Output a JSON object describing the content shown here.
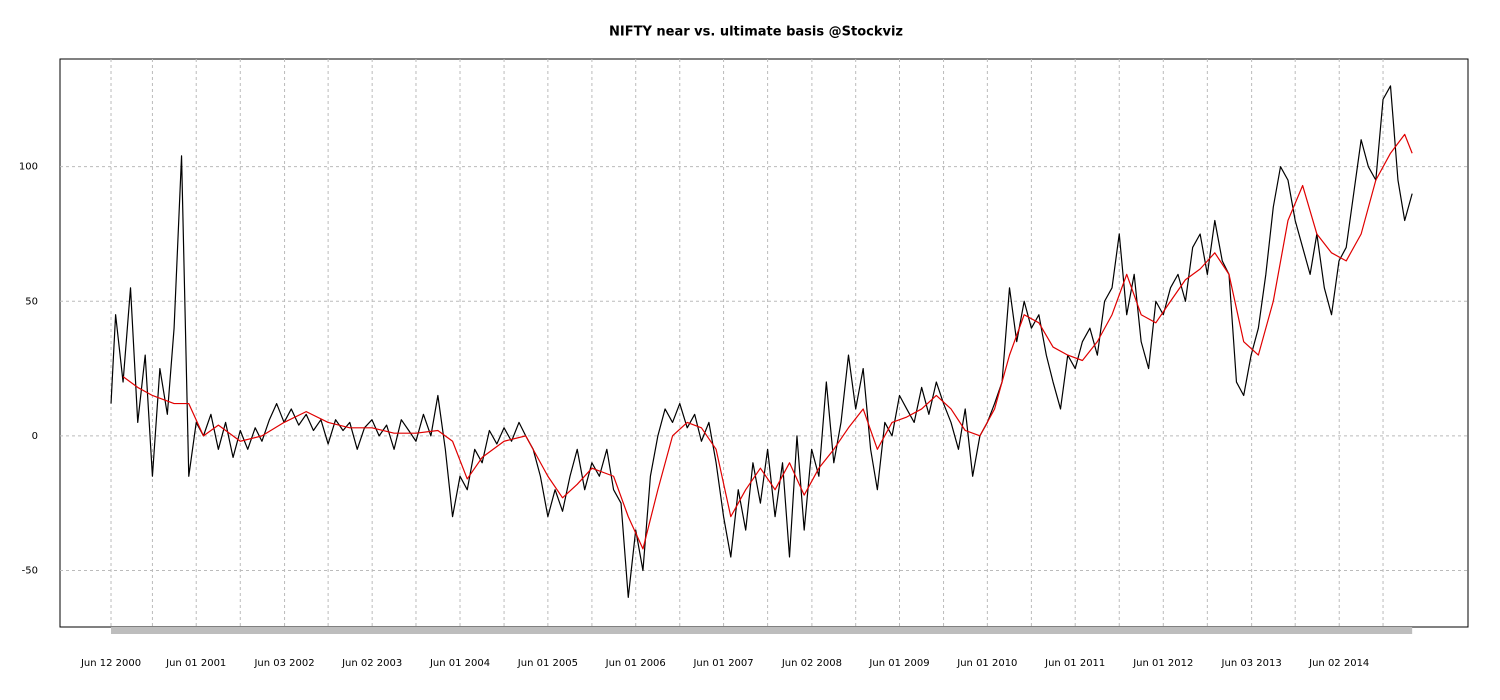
{
  "chart_data": {
    "type": "line",
    "title": "NIFTY near vs. ultimate basis @Stockviz",
    "xlim": [
      "1999-11-13",
      "2015-11-19"
    ],
    "ylim": [
      -71,
      140
    ],
    "yticks": [
      -50,
      0,
      50,
      100
    ],
    "xticks": [
      {
        "value": "2000-06-12",
        "label": "Jun 12 2000"
      },
      {
        "value": "2001-06-01",
        "label": "Jun 01 2001"
      },
      {
        "value": "2002-06-03",
        "label": "Jun 03 2002"
      },
      {
        "value": "2003-06-02",
        "label": "Jun 02 2003"
      },
      {
        "value": "2004-06-01",
        "label": "Jun 01 2004"
      },
      {
        "value": "2005-06-01",
        "label": "Jun 01 2005"
      },
      {
        "value": "2006-06-01",
        "label": "Jun 01 2006"
      },
      {
        "value": "2007-06-01",
        "label": "Jun 01 2007"
      },
      {
        "value": "2008-06-02",
        "label": "Jun 02 2008"
      },
      {
        "value": "2009-06-01",
        "label": "Jun 01 2009"
      },
      {
        "value": "2010-06-01",
        "label": "Jun 01 2010"
      },
      {
        "value": "2011-06-01",
        "label": "Jun 01 2011"
      },
      {
        "value": "2012-06-01",
        "label": "Jun 01 2012"
      },
      {
        "value": "2013-06-03",
        "label": "Jun 03 2013"
      },
      {
        "value": "2014-06-02",
        "label": "Jun 02 2014"
      }
    ],
    "minor_xticks": [
      "2000-12-01",
      "2001-12-01",
      "2002-12-01",
      "2003-12-01",
      "2004-12-01",
      "2005-12-01",
      "2006-12-01",
      "2007-12-01",
      "2008-12-01",
      "2009-12-01",
      "2010-12-01",
      "2011-12-01",
      "2012-12-01",
      "2013-12-01",
      "2014-12-01"
    ],
    "grid": true,
    "series": [
      {
        "color": "#000000",
        "x": [
          "2000-06-12",
          "2000-07-01",
          "2000-08-01",
          "2000-09-01",
          "2000-10-01",
          "2000-11-01",
          "2000-12-01",
          "2001-01-01",
          "2001-02-01",
          "2001-03-01",
          "2001-04-01",
          "2001-05-01",
          "2001-06-01",
          "2001-07-01",
          "2001-08-01",
          "2001-09-01",
          "2001-10-01",
          "2001-11-01",
          "2001-12-01",
          "2002-01-01",
          "2002-02-01",
          "2002-03-01",
          "2002-04-01",
          "2002-05-01",
          "2002-06-01",
          "2002-07-01",
          "2002-08-01",
          "2002-09-01",
          "2002-10-01",
          "2002-11-01",
          "2002-12-01",
          "2003-01-01",
          "2003-02-01",
          "2003-03-01",
          "2003-04-01",
          "2003-05-01",
          "2003-06-01",
          "2003-07-01",
          "2003-08-01",
          "2003-09-01",
          "2003-10-01",
          "2003-11-01",
          "2003-12-01",
          "2004-01-01",
          "2004-02-01",
          "2004-03-01",
          "2004-04-01",
          "2004-05-01",
          "2004-06-01",
          "2004-07-01",
          "2004-08-01",
          "2004-09-01",
          "2004-10-01",
          "2004-11-01",
          "2004-12-01",
          "2005-01-01",
          "2005-02-01",
          "2005-03-01",
          "2005-04-01",
          "2005-05-01",
          "2005-06-01",
          "2005-07-01",
          "2005-08-01",
          "2005-09-01",
          "2005-10-01",
          "2005-11-01",
          "2005-12-01",
          "2006-01-01",
          "2006-02-01",
          "2006-03-01",
          "2006-04-01",
          "2006-05-01",
          "2006-06-01",
          "2006-07-01",
          "2006-08-01",
          "2006-09-01",
          "2006-10-01",
          "2006-11-01",
          "2006-12-01",
          "2007-01-01",
          "2007-02-01",
          "2007-03-01",
          "2007-04-01",
          "2007-05-01",
          "2007-06-01",
          "2007-07-01",
          "2007-08-01",
          "2007-09-01",
          "2007-10-01",
          "2007-11-01",
          "2007-12-01",
          "2008-01-01",
          "2008-02-01",
          "2008-03-01",
          "2008-04-01",
          "2008-05-01",
          "2008-06-01",
          "2008-07-01",
          "2008-08-01",
          "2008-09-01",
          "2008-10-01",
          "2008-11-01",
          "2008-12-01",
          "2009-01-01",
          "2009-02-01",
          "2009-03-01",
          "2009-04-01",
          "2009-05-01",
          "2009-06-01",
          "2009-07-01",
          "2009-08-01",
          "2009-09-01",
          "2009-10-01",
          "2009-11-01",
          "2009-12-01",
          "2010-01-01",
          "2010-02-01",
          "2010-03-01",
          "2010-04-01",
          "2010-05-01",
          "2010-06-01",
          "2010-07-01",
          "2010-08-01",
          "2010-09-01",
          "2010-10-01",
          "2010-11-01",
          "2010-12-01",
          "2011-01-01",
          "2011-02-01",
          "2011-03-01",
          "2011-04-01",
          "2011-05-01",
          "2011-06-01",
          "2011-07-01",
          "2011-08-01",
          "2011-09-01",
          "2011-10-01",
          "2011-11-01",
          "2011-12-01",
          "2012-01-01",
          "2012-02-01",
          "2012-03-01",
          "2012-04-01",
          "2012-05-01",
          "2012-06-01",
          "2012-07-01",
          "2012-08-01",
          "2012-09-01",
          "2012-10-01",
          "2012-11-01",
          "2012-12-01",
          "2013-01-01",
          "2013-02-01",
          "2013-03-01",
          "2013-04-01",
          "2013-05-01",
          "2013-06-01",
          "2013-07-01",
          "2013-08-01",
          "2013-09-01",
          "2013-10-01",
          "2013-11-01",
          "2013-12-01",
          "2014-01-01",
          "2014-02-01",
          "2014-03-01",
          "2014-04-01",
          "2014-05-01",
          "2014-06-01",
          "2014-07-01",
          "2014-08-01",
          "2014-09-01",
          "2014-10-01",
          "2014-11-01",
          "2014-12-01",
          "2015-01-01",
          "2015-02-01",
          "2015-03-01",
          "2015-04-01"
        ],
        "values": [
          12,
          45,
          20,
          55,
          5,
          30,
          -15,
          25,
          8,
          40,
          104,
          -15,
          5,
          0,
          8,
          -5,
          5,
          -8,
          2,
          -5,
          3,
          -2,
          6,
          12,
          5,
          10,
          4,
          8,
          2,
          6,
          -3,
          6,
          2,
          5,
          -5,
          3,
          6,
          0,
          4,
          -5,
          6,
          2,
          -2,
          8,
          0,
          15,
          -5,
          -30,
          -15,
          -20,
          -5,
          -10,
          2,
          -3,
          3,
          -2,
          5,
          0,
          -5,
          -15,
          -30,
          -20,
          -28,
          -15,
          -5,
          -20,
          -10,
          -15,
          -5,
          -20,
          -25,
          -60,
          -35,
          -50,
          -15,
          0,
          10,
          5,
          12,
          3,
          8,
          -2,
          5,
          -10,
          -30,
          -45,
          -20,
          -35,
          -10,
          -25,
          -5,
          -30,
          -10,
          -45,
          0,
          -35,
          -5,
          -15,
          20,
          -10,
          5,
          30,
          10,
          25,
          -5,
          -20,
          5,
          0,
          15,
          10,
          5,
          18,
          8,
          20,
          12,
          5,
          -5,
          10,
          -15,
          0,
          5,
          12,
          20,
          55,
          35,
          50,
          40,
          45,
          30,
          20,
          10,
          30,
          25,
          35,
          40,
          30,
          50,
          55,
          75,
          45,
          60,
          35,
          25,
          50,
          45,
          55,
          60,
          50,
          70,
          75,
          60,
          80,
          65,
          60,
          20,
          15,
          30,
          40,
          60,
          85,
          100,
          95,
          80,
          70,
          60,
          75,
          55,
          45,
          65,
          70,
          90,
          110,
          100,
          95,
          125,
          130,
          95,
          80,
          90
        ]
      },
      {
        "color": "#e00000",
        "x": [
          "2000-08-01",
          "2000-10-01",
          "2000-12-01",
          "2001-03-01",
          "2001-05-01",
          "2001-07-01",
          "2001-09-01",
          "2001-12-01",
          "2002-03-01",
          "2002-06-01",
          "2002-09-01",
          "2002-12-01",
          "2003-03-01",
          "2003-06-01",
          "2003-09-01",
          "2003-12-01",
          "2004-03-01",
          "2004-05-01",
          "2004-07-01",
          "2004-09-01",
          "2004-12-01",
          "2005-03-01",
          "2005-06-01",
          "2005-08-01",
          "2005-10-01",
          "2005-12-01",
          "2006-03-01",
          "2006-05-01",
          "2006-07-01",
          "2006-09-01",
          "2006-11-01",
          "2007-01-01",
          "2007-03-01",
          "2007-05-01",
          "2007-07-01",
          "2007-09-01",
          "2007-11-01",
          "2008-01-01",
          "2008-03-01",
          "2008-05-01",
          "2008-07-01",
          "2008-09-01",
          "2008-11-01",
          "2009-01-01",
          "2009-03-01",
          "2009-05-01",
          "2009-07-01",
          "2009-09-01",
          "2009-11-01",
          "2010-01-01",
          "2010-03-01",
          "2010-05-01",
          "2010-07-01",
          "2010-09-01",
          "2010-11-01",
          "2011-01-01",
          "2011-03-01",
          "2011-05-01",
          "2011-07-01",
          "2011-09-01",
          "2011-11-01",
          "2012-01-01",
          "2012-03-01",
          "2012-05-01",
          "2012-07-01",
          "2012-09-01",
          "2012-11-01",
          "2013-01-01",
          "2013-03-01",
          "2013-05-01",
          "2013-07-01",
          "2013-09-01",
          "2013-11-01",
          "2014-01-01",
          "2014-03-01",
          "2014-05-01",
          "2014-07-01",
          "2014-09-01",
          "2014-11-01",
          "2015-01-01",
          "2015-03-01",
          "2015-04-01"
        ],
        "values": [
          22,
          18,
          15,
          12,
          12,
          0,
          4,
          -2,
          0,
          5,
          9,
          5,
          3,
          3,
          1,
          1,
          2,
          -2,
          -16,
          -8,
          -2,
          0,
          -15,
          -23,
          -18,
          -12,
          -15,
          -30,
          -42,
          -20,
          0,
          5,
          3,
          -5,
          -30,
          -20,
          -12,
          -20,
          -10,
          -22,
          -12,
          -5,
          3,
          10,
          -5,
          5,
          7,
          10,
          15,
          10,
          2,
          0,
          10,
          30,
          45,
          42,
          33,
          30,
          28,
          35,
          45,
          60,
          45,
          42,
          50,
          58,
          62,
          68,
          60,
          35,
          30,
          50,
          80,
          93,
          75,
          68,
          65,
          75,
          95,
          105,
          112,
          105
        ]
      }
    ]
  }
}
